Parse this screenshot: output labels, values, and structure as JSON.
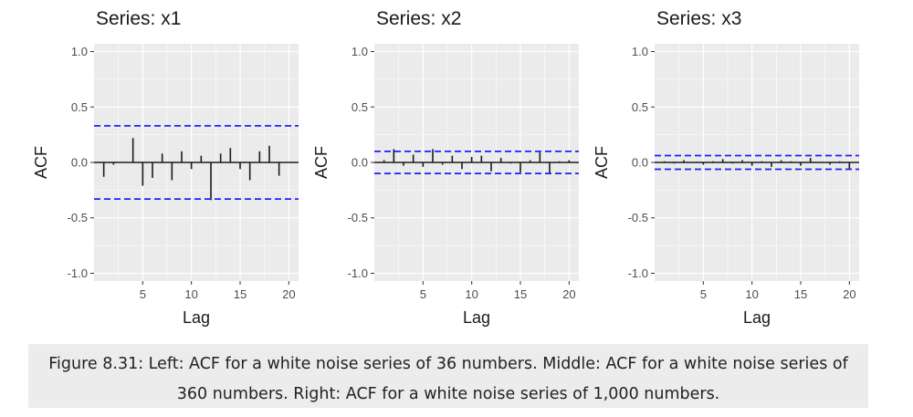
{
  "chart_data": [
    {
      "type": "bar",
      "title": "Series: x1",
      "xlabel": "Lag",
      "ylabel": "ACF",
      "x_ticks": [
        5,
        10,
        15,
        20
      ],
      "y_ticks": [
        1.0,
        0.5,
        0.0,
        -0.5,
        -1.0
      ],
      "y_tick_labels": [
        "1.0",
        "0.5",
        "0.0",
        "-0.5",
        "-1.0"
      ],
      "xlim": [
        0,
        21
      ],
      "ylim": [
        -1.07,
        1.07
      ],
      "lags": [
        1,
        2,
        3,
        4,
        5,
        6,
        7,
        8,
        9,
        10,
        11,
        12,
        13,
        14,
        15,
        16,
        17,
        18,
        19,
        20
      ],
      "values": [
        -0.13,
        -0.02,
        0.0,
        0.22,
        -0.21,
        -0.14,
        0.08,
        -0.16,
        0.1,
        -0.06,
        0.06,
        -0.34,
        0.08,
        0.13,
        -0.06,
        -0.16,
        0.1,
        0.15,
        -0.12,
        0.0
      ],
      "confidence_bound": 0.33,
      "grid": true
    },
    {
      "type": "bar",
      "title": "Series: x2",
      "xlabel": "Lag",
      "ylabel": "ACF",
      "x_ticks": [
        5,
        10,
        15,
        20
      ],
      "y_ticks": [
        1.0,
        0.5,
        0.0,
        -0.5,
        -1.0
      ],
      "y_tick_labels": [
        "1.0",
        "0.5",
        "0.0",
        "-0.5",
        "-1.0"
      ],
      "xlim": [
        0,
        21
      ],
      "ylim": [
        -1.07,
        1.07
      ],
      "lags": [
        1,
        2,
        3,
        4,
        5,
        6,
        7,
        8,
        9,
        10,
        11,
        12,
        13,
        14,
        15,
        16,
        17,
        18,
        19,
        20
      ],
      "values": [
        0.02,
        0.12,
        -0.03,
        0.07,
        -0.04,
        0.12,
        -0.02,
        0.06,
        -0.06,
        0.05,
        0.06,
        -0.08,
        0.04,
        -0.01,
        -0.09,
        0.02,
        0.09,
        -0.1,
        0.01,
        0.02
      ],
      "confidence_bound": 0.1,
      "grid": true
    },
    {
      "type": "bar",
      "title": "Series: x3",
      "xlabel": "Lag",
      "ylabel": "ACF",
      "x_ticks": [
        5,
        10,
        15,
        20
      ],
      "y_ticks": [
        1.0,
        0.5,
        0.0,
        -0.5,
        -1.0
      ],
      "y_tick_labels": [
        "1.0",
        "0.5",
        "0.0",
        "-0.5",
        "-1.0"
      ],
      "xlim": [
        0,
        21
      ],
      "ylim": [
        -1.07,
        1.07
      ],
      "lags": [
        1,
        2,
        3,
        4,
        5,
        6,
        7,
        8,
        9,
        10,
        11,
        12,
        13,
        14,
        15,
        16,
        17,
        18,
        19,
        20
      ],
      "values": [
        0.01,
        -0.01,
        0.02,
        0.0,
        -0.02,
        0.01,
        0.03,
        -0.01,
        0.02,
        -0.03,
        0.01,
        -0.04,
        0.02,
        0.01,
        -0.03,
        0.04,
        0.0,
        -0.02,
        0.01,
        -0.06
      ],
      "confidence_bound": 0.062,
      "grid": true
    }
  ],
  "caption": "Figure 8.31: Left: ACF for a white noise series of 36 numbers. Middle: ACF for a white noise series of 360 numbers. Right: ACF for a white noise series of 1,000 numbers.",
  "colors": {
    "panel_background": "#ebebeb",
    "gridline": "#ffffff",
    "confidence_line": "#1f1fff",
    "bar": "#1a1a1a",
    "axis_text": "#4d4d4d"
  }
}
